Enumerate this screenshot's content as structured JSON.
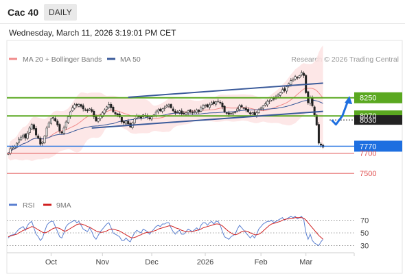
{
  "header": {
    "ticker": "Cac 40",
    "interval": "DAILY",
    "timestamp": "Wednesday, March 11, 2026 3:19:01 PM CET"
  },
  "colors": {
    "up": "#3a8a3a",
    "down": "#c0392b",
    "bollinger_fill": "#fde3e3",
    "ma20": "#f08a8a",
    "ma50": "#3a5a9a",
    "support_resistance": "#5aa820",
    "trend_channel": "#3a5a9a",
    "target_line": "#1e6fe0",
    "red_level": "#e05050",
    "rsi": "#5a7fd0",
    "rsi_ma": "#d02020"
  },
  "chart_data": [
    {
      "type": "candlestick",
      "title": "",
      "legend": [
        {
          "name": "MA 20 + Bollinger Bands",
          "color": "#f08a8a"
        },
        {
          "name": "MA 50",
          "color": "#3a5a9a"
        }
      ],
      "legend_position": "top-left",
      "credit": "Research © 2026 Trading Central",
      "x_tick_labels": [
        "Oct",
        "Nov",
        "Dec",
        "2026",
        "Feb",
        "Mar"
      ],
      "x_ticks_at_bar": [
        20,
        44,
        67,
        92,
        118,
        139
      ],
      "ylim": [
        7440,
        8540
      ],
      "closes": [
        7700,
        7745,
        7760,
        7770,
        7800,
        7840,
        7860,
        7880,
        7850,
        7900,
        7950,
        7985,
        7940,
        7880,
        7850,
        7790,
        7810,
        7870,
        7950,
        8000,
        8040,
        8055,
        8020,
        7980,
        7920,
        7900,
        7950,
        8010,
        8060,
        8110,
        8150,
        8180,
        8175,
        8185,
        8165,
        8140,
        8130,
        8120,
        8140,
        8115,
        8060,
        8020,
        8040,
        8070,
        8100,
        8130,
        8160,
        8185,
        8150,
        8110,
        8090,
        8080,
        8060,
        8010,
        8000,
        8020,
        7990,
        7960,
        8000,
        8040,
        8070,
        8060,
        8050,
        8080,
        8070,
        8060,
        8040,
        8060,
        8080,
        8110,
        8130,
        8120,
        8140,
        8150,
        8170,
        8180,
        8150,
        8120,
        8100,
        8110,
        8120,
        8090,
        8090,
        8100,
        8120,
        8110,
        8100,
        8115,
        8130,
        8110,
        8150,
        8170,
        8175,
        8160,
        8180,
        8200,
        8190,
        8210,
        8215,
        8200,
        8160,
        8110,
        8100,
        8085,
        8095,
        8100,
        8110,
        8140,
        8170,
        8160,
        8150,
        8130,
        8110,
        8090,
        8100,
        8080,
        8100,
        8130,
        8150,
        8170,
        8190,
        8215,
        8220,
        8250,
        8240,
        8260,
        8280,
        8300,
        8330,
        8320,
        8360,
        8390,
        8420,
        8430,
        8460,
        8450,
        8470,
        8500,
        8470,
        8300,
        8200,
        8250,
        8170,
        8080,
        7980,
        7800,
        7780,
        7760
      ],
      "bar_count": 160,
      "price_levels": [
        {
          "value": 8250,
          "label": "8250",
          "style": "green-box"
        },
        {
          "value": 8070,
          "label": "8070",
          "style": "green-box"
        },
        {
          "value": 8030,
          "label": "8030",
          "style": "dark-box"
        },
        {
          "value": 7770,
          "label": "7770",
          "style": "blue-box"
        },
        {
          "value": 7700,
          "label": "7700",
          "style": "red-text"
        },
        {
          "value": 7500,
          "label": "7500",
          "style": "red-text"
        }
      ],
      "channel": {
        "upper": {
          "from_bar": 56,
          "from": 8255,
          "to_bar": 147,
          "to": 8395
        },
        "lower": {
          "from_bar": 39,
          "from": 7950,
          "to_bar": 147,
          "to": 8115
        }
      },
      "forecast_arrow": [
        [
          151,
          8030
        ],
        [
          153,
          7985
        ],
        [
          156,
          8070
        ],
        [
          159,
          8240
        ]
      ]
    },
    {
      "type": "line",
      "title": "",
      "legend": [
        {
          "name": "RSI",
          "color": "#5a7fd0"
        },
        {
          "name": "9MA",
          "color": "#d02020"
        }
      ],
      "ylim": [
        22,
        78
      ],
      "y_ticks": [
        30,
        50,
        70
      ],
      "y_tick_labels": [
        "30",
        "50",
        "70"
      ],
      "rsi": [
        42,
        46,
        47,
        48,
        52,
        56,
        58,
        60,
        54,
        62,
        66,
        68,
        58,
        48,
        44,
        38,
        42,
        52,
        62,
        66,
        68,
        68,
        60,
        52,
        44,
        42,
        50,
        60,
        64,
        66,
        68,
        70,
        66,
        68,
        62,
        56,
        54,
        52,
        58,
        52,
        44,
        40,
        46,
        52,
        56,
        60,
        64,
        66,
        58,
        50,
        48,
        46,
        44,
        38,
        38,
        42,
        38,
        36,
        44,
        50,
        54,
        52,
        50,
        56,
        54,
        52,
        48,
        52,
        56,
        60,
        62,
        60,
        64,
        64,
        66,
        66,
        58,
        52,
        48,
        52,
        54,
        48,
        48,
        52,
        56,
        54,
        52,
        55,
        58,
        54,
        62,
        66,
        66,
        62,
        66,
        68,
        64,
        68,
        68,
        62,
        52,
        44,
        42,
        40,
        44,
        46,
        48,
        56,
        62,
        58,
        54,
        50,
        46,
        42,
        46,
        42,
        48,
        56,
        60,
        64,
        66,
        68,
        68,
        70,
        66,
        68,
        70,
        72,
        74,
        70,
        72,
        74,
        76,
        74,
        76,
        72,
        74,
        76,
        70,
        50,
        40,
        48,
        38,
        34,
        32,
        30,
        36,
        40
      ],
      "rsi_ma": [
        44,
        45,
        46,
        47,
        48,
        50,
        52,
        54,
        55,
        57,
        58,
        60,
        59,
        57,
        55,
        53,
        51,
        50,
        51,
        53,
        55,
        57,
        58,
        58,
        57,
        55,
        53,
        53,
        55,
        57,
        59,
        61,
        63,
        64,
        64,
        63,
        62,
        60,
        59,
        57,
        55,
        53,
        52,
        51,
        51,
        52,
        53,
        55,
        56,
        56,
        55,
        54,
        53,
        51,
        49,
        47,
        45,
        43,
        42,
        43,
        44,
        46,
        47,
        49,
        50,
        51,
        51,
        52,
        53,
        54,
        56,
        57,
        58,
        59,
        60,
        61,
        61,
        60,
        58,
        57,
        56,
        54,
        53,
        52,
        52,
        52,
        52,
        53,
        54,
        55,
        56,
        58,
        59,
        60,
        61,
        62,
        63,
        64,
        64,
        63,
        61,
        58,
        55,
        52,
        50,
        48,
        47,
        48,
        50,
        52,
        53,
        53,
        52,
        50,
        49,
        47,
        47,
        48,
        50,
        53,
        56,
        59,
        62,
        64,
        65,
        66,
        67,
        68,
        70,
        71,
        72,
        72,
        73,
        73,
        74,
        74,
        74,
        74,
        73,
        70,
        66,
        62,
        58,
        54,
        50,
        46,
        43,
        40
      ],
      "dotted_guides": [
        30,
        50,
        70
      ]
    }
  ]
}
